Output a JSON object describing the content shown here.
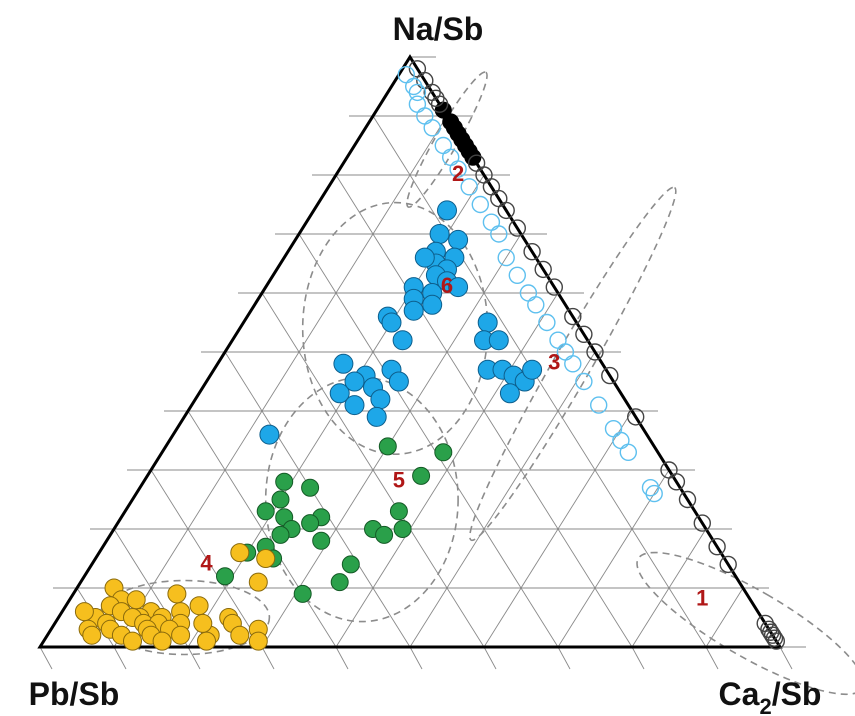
{
  "chart_data": {
    "type": "scatter",
    "subtype": "ternary",
    "apex_labels": {
      "top": "Na/Sb",
      "left": "Pb/Sb",
      "right_main": "Ca",
      "right_sub": "2",
      "right_tail": "/Sb"
    },
    "grid": true,
    "grid_divisions": 10,
    "colors": {
      "blue": "#1ea7e8",
      "green": "#2aa04a",
      "orange": "#f6bf1e",
      "black": "#000000",
      "open_black": "#444444",
      "open_blue": "#5ec0ef",
      "cluster_label": "#b01717"
    },
    "clusters": [
      {
        "label": "1",
        "label_pos": [
          0.07,
          0.86,
          0.07
        ],
        "center": [
          0.04,
          0.94,
          0.02
        ],
        "rx": 0.09,
        "ry": 0.35,
        "angle": -60
      },
      {
        "label": "2",
        "label_pos": [
          0.79,
          0.17,
          0.04
        ],
        "center": [
          0.86,
          0.12,
          0.02
        ],
        "rx": 0.21,
        "ry": 0.03,
        "angle": -60
      },
      {
        "label": "3",
        "label_pos": [
          0.47,
          0.46,
          0.07
        ],
        "center": [
          0.48,
          0.48,
          0.04
        ],
        "rx": 0.55,
        "ry": 0.05,
        "angle": -60
      },
      {
        "label": "4",
        "label_pos": [
          0.13,
          0.16,
          0.71
        ],
        "center": [
          0.05,
          0.17,
          0.78
        ],
        "rx": 0.23,
        "ry": 0.1,
        "angle": 0
      },
      {
        "label": "5",
        "label_pos": [
          0.27,
          0.35,
          0.38
        ],
        "center": [
          0.25,
          0.31,
          0.44
        ],
        "rx": 0.26,
        "ry": 0.33,
        "angle": 0
      },
      {
        "label": "6",
        "label_pos": [
          0.6,
          0.25,
          0.15
        ],
        "center": [
          0.54,
          0.21,
          0.25
        ],
        "rx": 0.25,
        "ry": 0.34,
        "angle": 0
      }
    ],
    "series": [
      {
        "marker": "filled-blue",
        "points": [
          [
            0.74,
            0.18,
            0.08
          ],
          [
            0.7,
            0.19,
            0.11
          ],
          [
            0.69,
            0.22,
            0.09
          ],
          [
            0.67,
            0.2,
            0.13
          ],
          [
            0.66,
            0.23,
            0.11
          ],
          [
            0.65,
            0.21,
            0.14
          ],
          [
            0.64,
            0.23,
            0.13
          ],
          [
            0.63,
            0.22,
            0.15
          ],
          [
            0.62,
            0.24,
            0.14
          ],
          [
            0.61,
            0.2,
            0.19
          ],
          [
            0.6,
            0.23,
            0.17
          ],
          [
            0.59,
            0.21,
            0.2
          ],
          [
            0.58,
            0.24,
            0.18
          ],
          [
            0.57,
            0.22,
            0.21
          ],
          [
            0.56,
            0.19,
            0.25
          ],
          [
            0.66,
            0.19,
            0.15
          ],
          [
            0.61,
            0.26,
            0.13
          ],
          [
            0.55,
            0.2,
            0.25
          ],
          [
            0.52,
            0.23,
            0.25
          ],
          [
            0.48,
            0.17,
            0.35
          ],
          [
            0.47,
            0.24,
            0.29
          ],
          [
            0.46,
            0.21,
            0.33
          ],
          [
            0.45,
            0.26,
            0.29
          ],
          [
            0.44,
            0.23,
            0.33
          ],
          [
            0.43,
            0.19,
            0.38
          ],
          [
            0.42,
            0.25,
            0.33
          ],
          [
            0.41,
            0.22,
            0.37
          ],
          [
            0.39,
            0.26,
            0.35
          ],
          [
            0.45,
            0.2,
            0.35
          ],
          [
            0.36,
            0.13,
            0.51
          ],
          [
            0.55,
            0.33,
            0.12
          ],
          [
            0.52,
            0.34,
            0.14
          ],
          [
            0.52,
            0.36,
            0.12
          ],
          [
            0.47,
            0.37,
            0.16
          ],
          [
            0.47,
            0.39,
            0.14
          ],
          [
            0.46,
            0.41,
            0.13
          ],
          [
            0.45,
            0.43,
            0.12
          ],
          [
            0.47,
            0.43,
            0.1
          ],
          [
            0.43,
            0.42,
            0.15
          ]
        ]
      },
      {
        "marker": "filled-green",
        "points": [
          [
            0.34,
            0.3,
            0.36
          ],
          [
            0.33,
            0.38,
            0.29
          ],
          [
            0.29,
            0.37,
            0.34
          ],
          [
            0.28,
            0.19,
            0.53
          ],
          [
            0.27,
            0.23,
            0.5
          ],
          [
            0.25,
            0.2,
            0.55
          ],
          [
            0.23,
            0.19,
            0.58
          ],
          [
            0.22,
            0.27,
            0.51
          ],
          [
            0.22,
            0.22,
            0.56
          ],
          [
            0.21,
            0.26,
            0.53
          ],
          [
            0.2,
            0.35,
            0.45
          ],
          [
            0.2,
            0.24,
            0.56
          ],
          [
            0.19,
            0.23,
            0.58
          ],
          [
            0.19,
            0.37,
            0.44
          ],
          [
            0.18,
            0.29,
            0.53
          ],
          [
            0.17,
            0.22,
            0.61
          ],
          [
            0.16,
            0.2,
            0.64
          ],
          [
            0.15,
            0.24,
            0.61
          ],
          [
            0.14,
            0.35,
            0.51
          ],
          [
            0.12,
            0.19,
            0.69
          ],
          [
            0.11,
            0.35,
            0.54
          ],
          [
            0.09,
            0.31,
            0.6
          ],
          [
            0.23,
            0.37,
            0.4
          ],
          [
            0.2,
            0.39,
            0.41
          ]
        ]
      },
      {
        "marker": "filled-orange",
        "points": [
          [
            0.16,
            0.19,
            0.65
          ],
          [
            0.15,
            0.23,
            0.62
          ],
          [
            0.11,
            0.24,
            0.65
          ],
          [
            0.1,
            0.05,
            0.85
          ],
          [
            0.09,
            0.14,
            0.77
          ],
          [
            0.08,
            0.07,
            0.85
          ],
          [
            0.08,
            0.09,
            0.83
          ],
          [
            0.07,
            0.06,
            0.87
          ],
          [
            0.06,
            0.12,
            0.82
          ],
          [
            0.06,
            0.16,
            0.78
          ],
          [
            0.06,
            0.08,
            0.86
          ],
          [
            0.05,
            0.05,
            0.9
          ],
          [
            0.05,
            0.14,
            0.81
          ],
          [
            0.05,
            0.11,
            0.84
          ],
          [
            0.05,
            0.23,
            0.72
          ],
          [
            0.05,
            0.1,
            0.85
          ],
          [
            0.04,
            0.07,
            0.89
          ],
          [
            0.04,
            0.12,
            0.84
          ],
          [
            0.04,
            0.17,
            0.79
          ],
          [
            0.04,
            0.24,
            0.72
          ],
          [
            0.04,
            0.14,
            0.82
          ],
          [
            0.03,
            0.05,
            0.92
          ],
          [
            0.03,
            0.08,
            0.89
          ],
          [
            0.03,
            0.16,
            0.81
          ],
          [
            0.03,
            0.28,
            0.69
          ],
          [
            0.03,
            0.13,
            0.84
          ],
          [
            0.02,
            0.1,
            0.88
          ],
          [
            0.02,
            0.18,
            0.8
          ],
          [
            0.02,
            0.22,
            0.76
          ],
          [
            0.02,
            0.06,
            0.92
          ],
          [
            0.02,
            0.14,
            0.84
          ],
          [
            0.01,
            0.29,
            0.7
          ],
          [
            0.01,
            0.16,
            0.83
          ],
          [
            0.01,
            0.12,
            0.87
          ],
          [
            0.01,
            0.22,
            0.77
          ],
          [
            0.06,
            0.03,
            0.91
          ],
          [
            0.07,
            0.18,
            0.75
          ],
          [
            0.04,
            0.2,
            0.76
          ],
          [
            0.02,
            0.26,
            0.72
          ]
        ]
      },
      {
        "marker": "filled-black",
        "points": [
          [
            0.91,
            0.09,
            0
          ],
          [
            0.89,
            0.11,
            0
          ],
          [
            0.88,
            0.12,
            0
          ],
          [
            0.87,
            0.13,
            0
          ],
          [
            0.86,
            0.14,
            0
          ],
          [
            0.85,
            0.15,
            0
          ],
          [
            0.84,
            0.16,
            0
          ],
          [
            0.83,
            0.17,
            0
          ]
        ]
      },
      {
        "marker": "open-black",
        "points": [
          [
            0.98,
            0.02,
            0
          ],
          [
            0.96,
            0.04,
            0
          ],
          [
            0.94,
            0.06,
            0
          ],
          [
            0.93,
            0.07,
            0
          ],
          [
            0.92,
            0.08,
            0
          ],
          [
            0.82,
            0.18,
            0
          ],
          [
            0.8,
            0.2,
            0
          ],
          [
            0.78,
            0.22,
            0
          ],
          [
            0.76,
            0.24,
            0
          ],
          [
            0.74,
            0.26,
            0
          ],
          [
            0.71,
            0.29,
            0
          ],
          [
            0.67,
            0.33,
            0
          ],
          [
            0.64,
            0.36,
            0
          ],
          [
            0.61,
            0.39,
            0
          ],
          [
            0.56,
            0.44,
            0
          ],
          [
            0.53,
            0.47,
            0
          ],
          [
            0.5,
            0.5,
            0
          ],
          [
            0.46,
            0.54,
            0
          ],
          [
            0.39,
            0.61,
            0
          ],
          [
            0.3,
            0.7,
            0
          ],
          [
            0.28,
            0.72,
            0
          ],
          [
            0.25,
            0.75,
            0
          ],
          [
            0.21,
            0.79,
            0
          ],
          [
            0.17,
            0.83,
            0
          ],
          [
            0.14,
            0.86,
            0
          ],
          [
            0.04,
            0.96,
            0
          ],
          [
            0.03,
            0.97,
            0
          ],
          [
            0.025,
            0.975,
            0
          ],
          [
            0.02,
            0.98,
            0
          ],
          [
            0.015,
            0.985,
            0
          ],
          [
            0.01,
            0.99,
            0
          ]
        ]
      },
      {
        "marker": "open-blue",
        "points": [
          [
            0.97,
            0.01,
            0.02
          ],
          [
            0.95,
            0.03,
            0.02
          ],
          [
            0.94,
            0.04,
            0.02
          ],
          [
            0.92,
            0.05,
            0.03
          ],
          [
            0.9,
            0.07,
            0.03
          ],
          [
            0.88,
            0.09,
            0.03
          ],
          [
            0.85,
            0.12,
            0.03
          ],
          [
            0.83,
            0.14,
            0.03
          ],
          [
            0.81,
            0.16,
            0.03
          ],
          [
            0.78,
            0.19,
            0.03
          ],
          [
            0.75,
            0.22,
            0.03
          ],
          [
            0.72,
            0.25,
            0.03
          ],
          [
            0.7,
            0.27,
            0.03
          ],
          [
            0.66,
            0.3,
            0.04
          ],
          [
            0.63,
            0.33,
            0.04
          ],
          [
            0.6,
            0.36,
            0.04
          ],
          [
            0.58,
            0.38,
            0.04
          ],
          [
            0.55,
            0.41,
            0.04
          ],
          [
            0.52,
            0.44,
            0.04
          ],
          [
            0.5,
            0.46,
            0.04
          ],
          [
            0.48,
            0.48,
            0.04
          ],
          [
            0.45,
            0.51,
            0.04
          ],
          [
            0.41,
            0.55,
            0.04
          ],
          [
            0.37,
            0.59,
            0.04
          ],
          [
            0.35,
            0.61,
            0.04
          ],
          [
            0.33,
            0.63,
            0.04
          ],
          [
            0.27,
            0.69,
            0.04
          ],
          [
            0.26,
            0.7,
            0.04
          ]
        ]
      }
    ]
  }
}
